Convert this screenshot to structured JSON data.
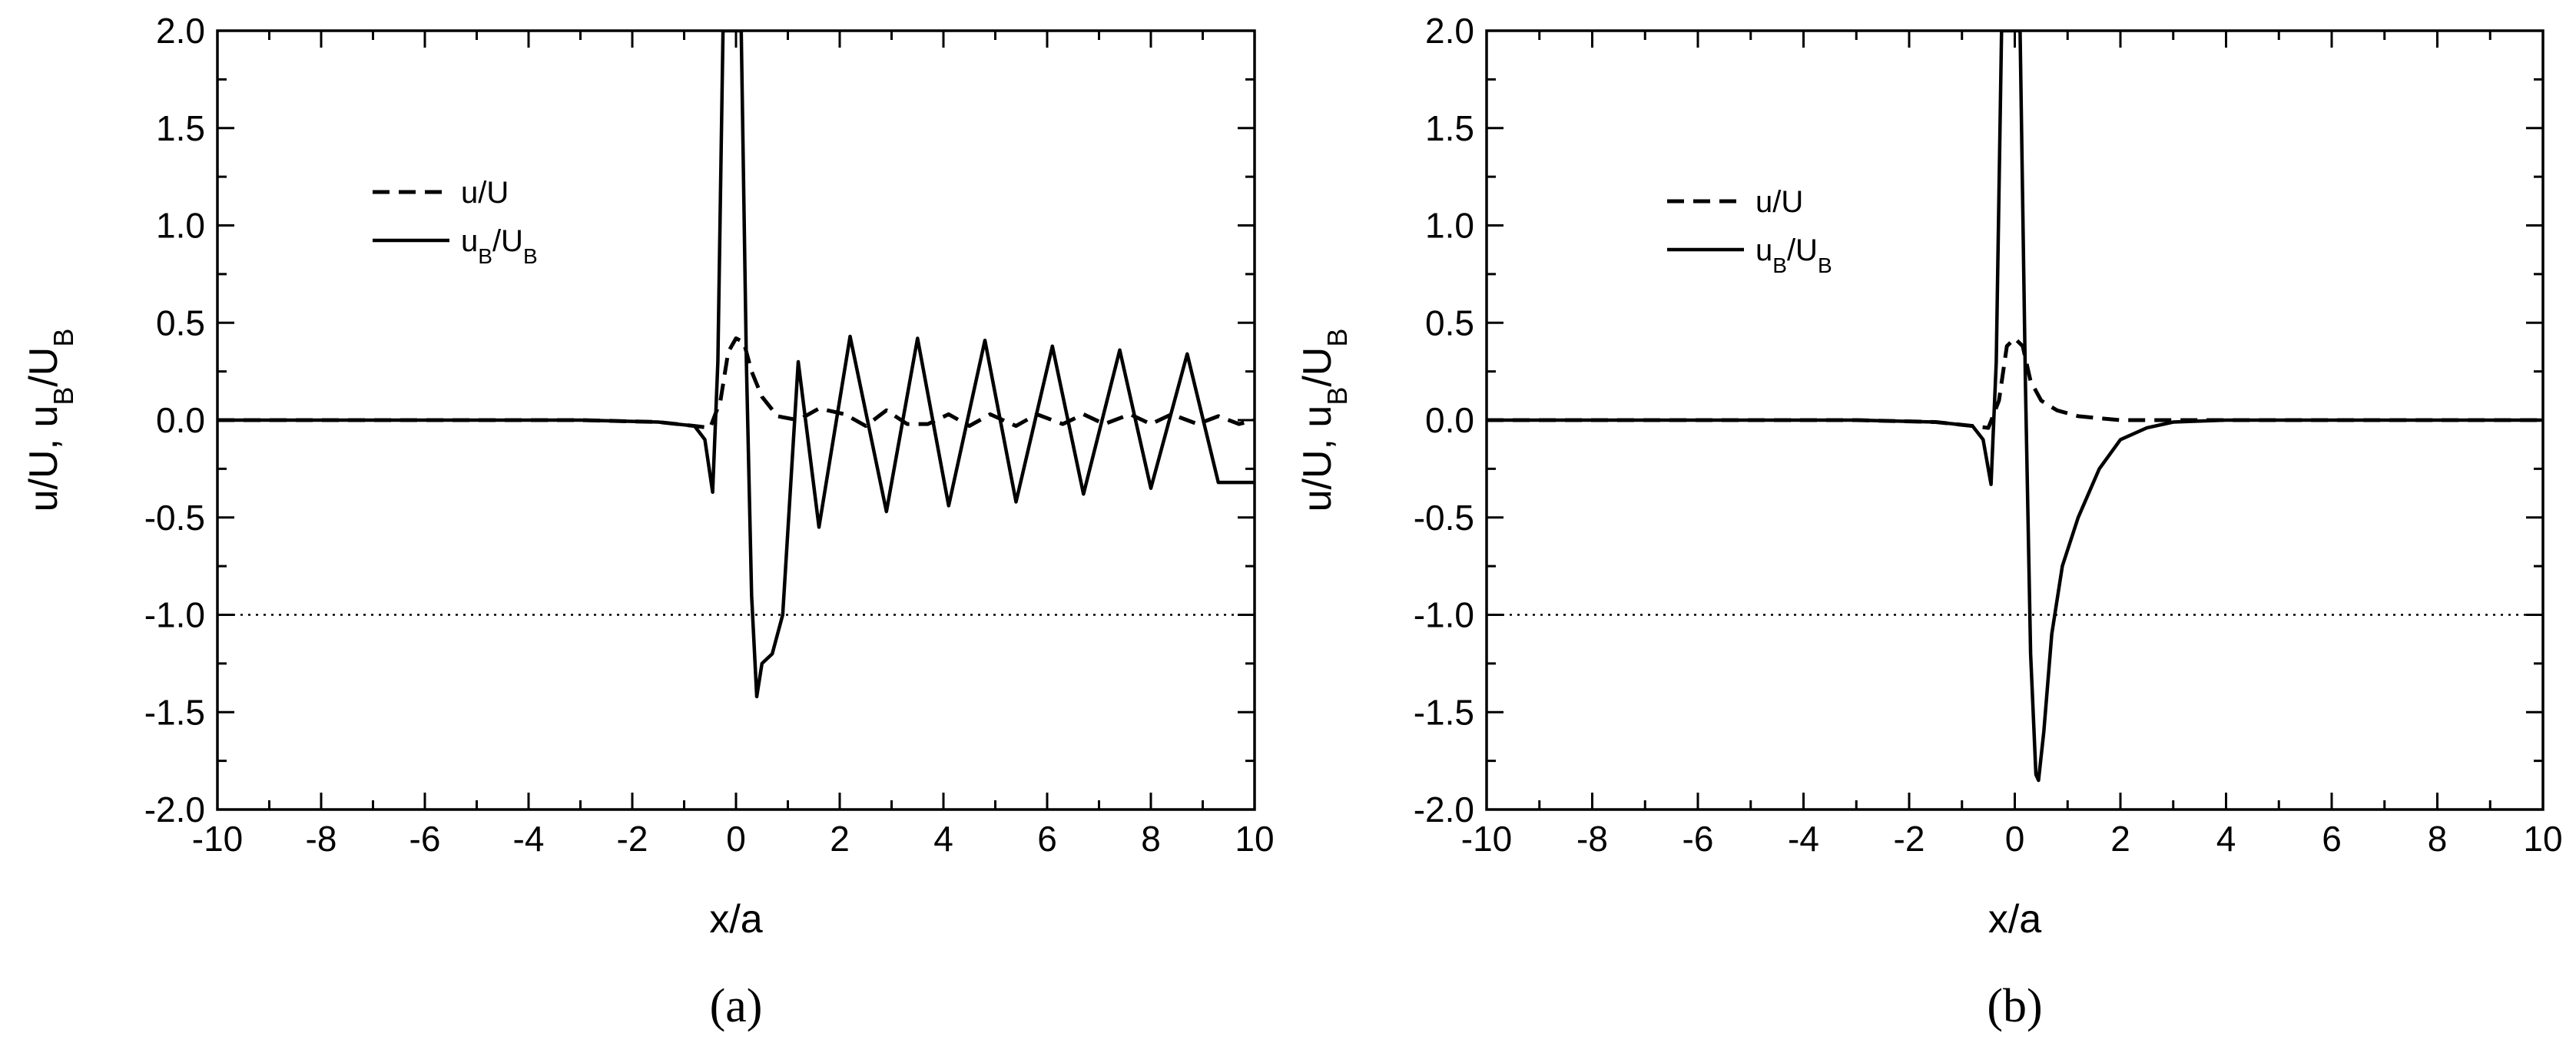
{
  "chart_data": [
    {
      "type": "line",
      "panel_label": "(a)",
      "xlabel": "x/a",
      "ylabel": "u/U, u_B/U_B",
      "xlim": [
        -10,
        10
      ],
      "ylim": [
        -2.0,
        2.0
      ],
      "xticks": [
        "-10",
        "-8",
        "-6",
        "-4",
        "-2",
        "0",
        "2",
        "4",
        "6",
        "8",
        "10"
      ],
      "yticks": [
        "2.0",
        "1.5",
        "1.0",
        "0.5",
        "0.0",
        "-0.5",
        "-1.0",
        "-1.5",
        "-2.0"
      ],
      "reference_line": {
        "y": -1.0,
        "style": "dotted"
      },
      "legend": [
        {
          "label": "u/U",
          "style": "dashed"
        },
        {
          "label": "u_B/U_B",
          "style": "solid"
        }
      ],
      "series": [
        {
          "name": "u/U",
          "style": "dashed",
          "x": [
            -10,
            -3,
            -1.5,
            -0.8,
            -0.5,
            -0.3,
            -0.15,
            0,
            0.15,
            0.3,
            0.5,
            0.8,
            1.2,
            1.6,
            2.1,
            2.5,
            2.9,
            3.3,
            3.7,
            4.1,
            4.5,
            4.9,
            5.4,
            5.8,
            6.3,
            6.7,
            7.1,
            7.6,
            8.0,
            8.4,
            8.9,
            9.3,
            9.7,
            10
          ],
          "y": [
            0,
            0,
            -0.01,
            -0.03,
            -0.04,
            0.1,
            0.35,
            0.42,
            0.4,
            0.25,
            0.12,
            0.02,
            0.0,
            0.06,
            0.03,
            -0.03,
            0.05,
            -0.02,
            -0.02,
            0.03,
            -0.03,
            0.03,
            -0.03,
            0.03,
            -0.02,
            0.03,
            -0.02,
            0.03,
            -0.02,
            0.03,
            -0.02,
            0.02,
            -0.02,
            0.0
          ]
        },
        {
          "name": "u_B/U_B",
          "style": "solid",
          "x": [
            -10,
            -3,
            -1.5,
            -0.8,
            -0.6,
            -0.45,
            -0.35,
            -0.25,
            -0.15,
            0,
            0.1,
            0.2,
            0.3,
            0.4,
            0.5,
            0.7,
            0.9,
            1.2,
            1.6,
            2.2,
            2.9,
            3.5,
            4.1,
            4.8,
            5.4,
            6.1,
            6.7,
            7.4,
            8.0,
            8.7,
            9.3,
            10
          ],
          "y": [
            0,
            0,
            -0.01,
            -0.03,
            -0.1,
            -0.37,
            0.3,
            2.0,
            2.0,
            2.0,
            2.0,
            0.3,
            -0.9,
            -1.42,
            -1.25,
            -1.2,
            -1.0,
            0.3,
            -0.55,
            0.43,
            -0.47,
            0.42,
            -0.44,
            0.41,
            -0.42,
            0.38,
            -0.38,
            0.36,
            -0.35,
            0.34,
            -0.32,
            -0.32
          ]
        }
      ]
    },
    {
      "type": "line",
      "panel_label": "(b)",
      "xlabel": "x/a",
      "ylabel": "u/U, u_B/U_B",
      "xlim": [
        -10,
        10
      ],
      "ylim": [
        -2.0,
        2.0
      ],
      "xticks": [
        "-10",
        "-8",
        "-6",
        "-4",
        "-2",
        "0",
        "2",
        "4",
        "6",
        "8",
        "10"
      ],
      "yticks": [
        "2.0",
        "1.5",
        "1.0",
        "0.5",
        "0.0",
        "-0.5",
        "-1.0",
        "-1.5",
        "-2.0"
      ],
      "reference_line": {
        "y": -1.0,
        "style": "dotted"
      },
      "legend": [
        {
          "label": "u/U",
          "style": "dashed"
        },
        {
          "label": "u_B/U_B",
          "style": "solid"
        }
      ],
      "series": [
        {
          "name": "u/U",
          "style": "dashed",
          "x": [
            -10,
            -3,
            -1.5,
            -0.8,
            -0.5,
            -0.3,
            -0.15,
            0,
            0.15,
            0.3,
            0.5,
            0.8,
            1.2,
            1.6,
            2.0,
            2.5,
            3.0,
            4.0,
            10
          ],
          "y": [
            0,
            0,
            -0.01,
            -0.03,
            -0.04,
            0.1,
            0.38,
            0.42,
            0.38,
            0.2,
            0.1,
            0.05,
            0.02,
            0.01,
            0.0,
            0.0,
            0.0,
            0.0,
            0.0
          ]
        },
        {
          "name": "u_B/U_B",
          "style": "solid",
          "x": [
            -10,
            -3,
            -1.5,
            -0.8,
            -0.6,
            -0.45,
            -0.35,
            -0.25,
            -0.15,
            0,
            0.1,
            0.2,
            0.3,
            0.4,
            0.45,
            0.55,
            0.7,
            0.9,
            1.2,
            1.6,
            2.0,
            2.5,
            3.0,
            4.0,
            10
          ],
          "y": [
            0,
            0,
            -0.01,
            -0.03,
            -0.1,
            -0.33,
            0.3,
            2.0,
            2.0,
            2.0,
            2.0,
            0.2,
            -1.2,
            -1.82,
            -1.85,
            -1.6,
            -1.1,
            -0.75,
            -0.5,
            -0.25,
            -0.1,
            -0.04,
            -0.01,
            0.0,
            0.0
          ]
        }
      ]
    }
  ]
}
